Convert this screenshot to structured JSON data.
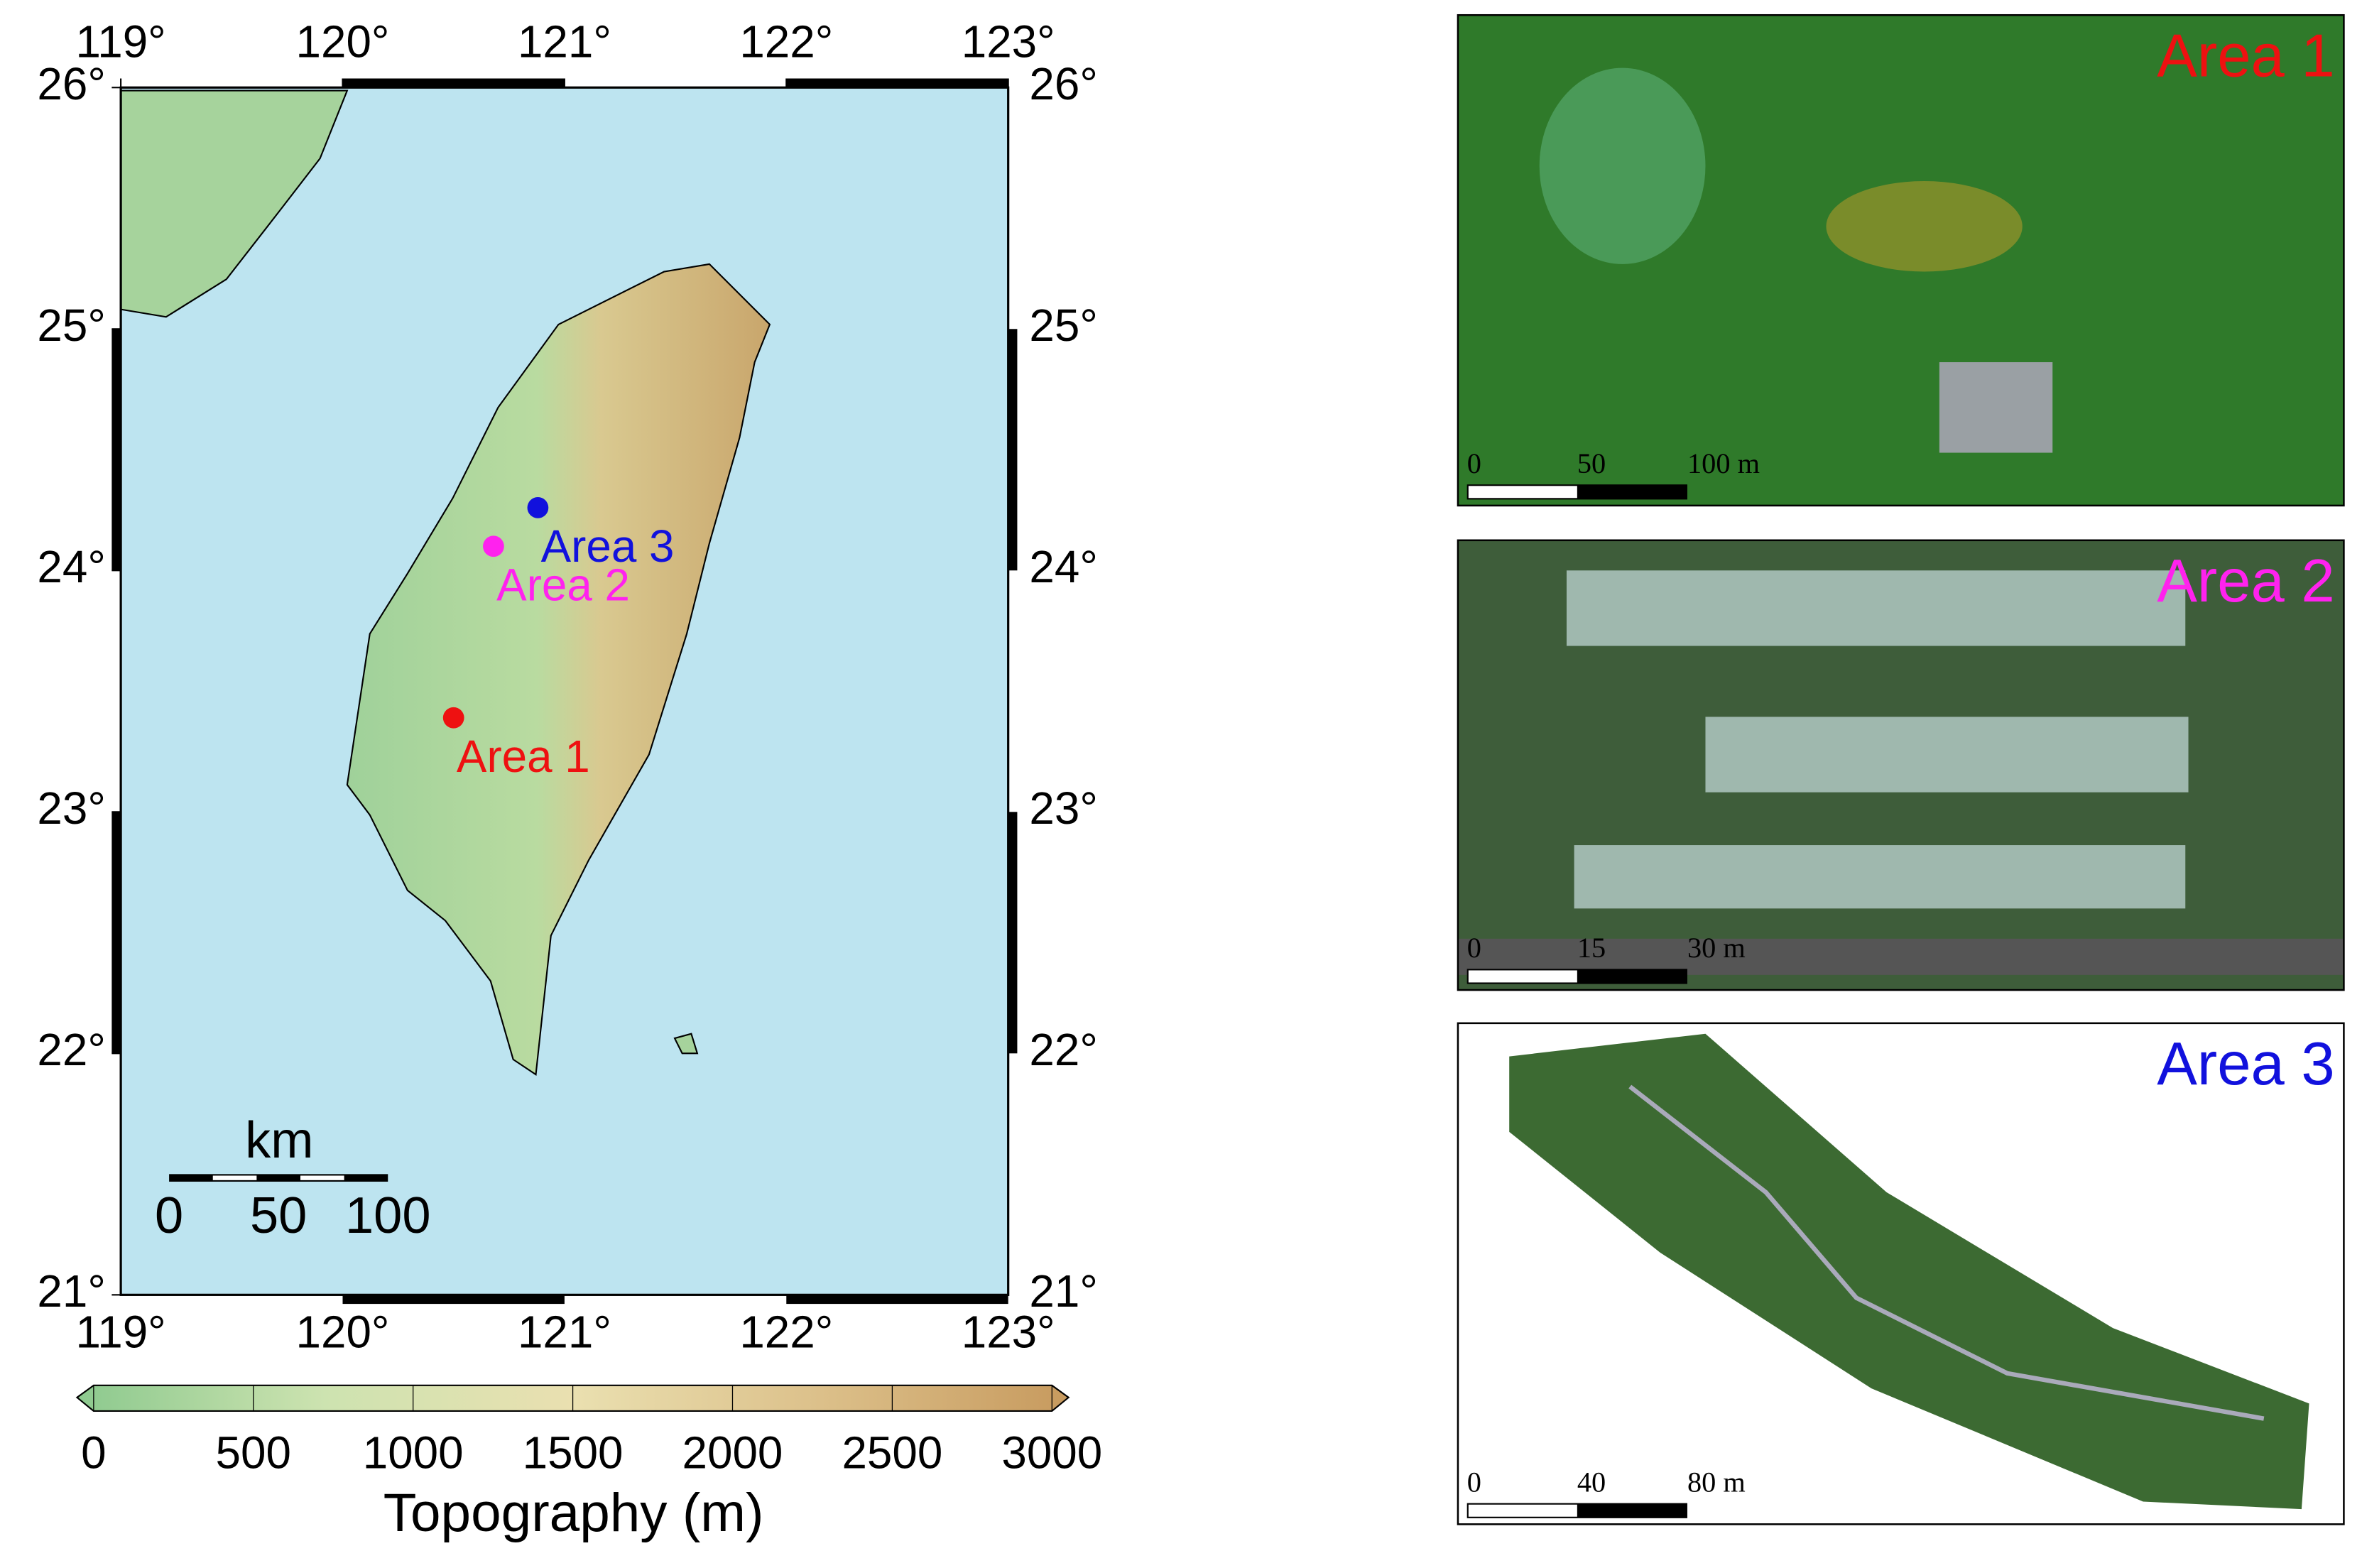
{
  "map": {
    "lon_ticks": [
      {
        "value": 119,
        "label": "119°"
      },
      {
        "value": 120,
        "label": "120°"
      },
      {
        "value": 121,
        "label": "121°"
      },
      {
        "value": 122,
        "label": "122°"
      },
      {
        "value": 123,
        "label": "123°"
      }
    ],
    "lat_ticks": [
      {
        "value": 21,
        "label": "21°"
      },
      {
        "value": 22,
        "label": "22°"
      },
      {
        "value": 23,
        "label": "23°"
      },
      {
        "value": 24,
        "label": "24°"
      },
      {
        "value": 25,
        "label": "25°"
      },
      {
        "value": 26,
        "label": "26°"
      }
    ],
    "lonlim": [
      119,
      123
    ],
    "latlim": [
      21,
      26
    ],
    "scale_bar": {
      "unit": "km",
      "labels": [
        "0",
        "50",
        "100"
      ]
    },
    "sites": [
      {
        "label": "Area 1",
        "color": "#ee1111",
        "lon": 120.5,
        "lat": 23.39
      },
      {
        "label": "Area 2",
        "color": "#ff22ee",
        "lon": 120.68,
        "lat": 24.1
      },
      {
        "label": "Area 3",
        "color": "#1111dd",
        "lon": 120.88,
        "lat": 24.26
      }
    ],
    "colorbar": {
      "title": "Topography (m)",
      "lim": [
        0,
        3000
      ],
      "ticks": [
        0,
        500,
        1000,
        1500,
        2000,
        2500,
        3000
      ]
    }
  },
  "panels": [
    {
      "label": "Area 1",
      "color": "#ee1111",
      "scale_labels": [
        "0",
        "50",
        "100 m"
      ]
    },
    {
      "label": "Area 2",
      "color": "#ff22ee",
      "scale_labels": [
        "0",
        "15",
        "30 m"
      ]
    },
    {
      "label": "Area 3",
      "color": "#1111dd",
      "scale_labels": [
        "0",
        "40",
        "80 m"
      ]
    }
  ]
}
